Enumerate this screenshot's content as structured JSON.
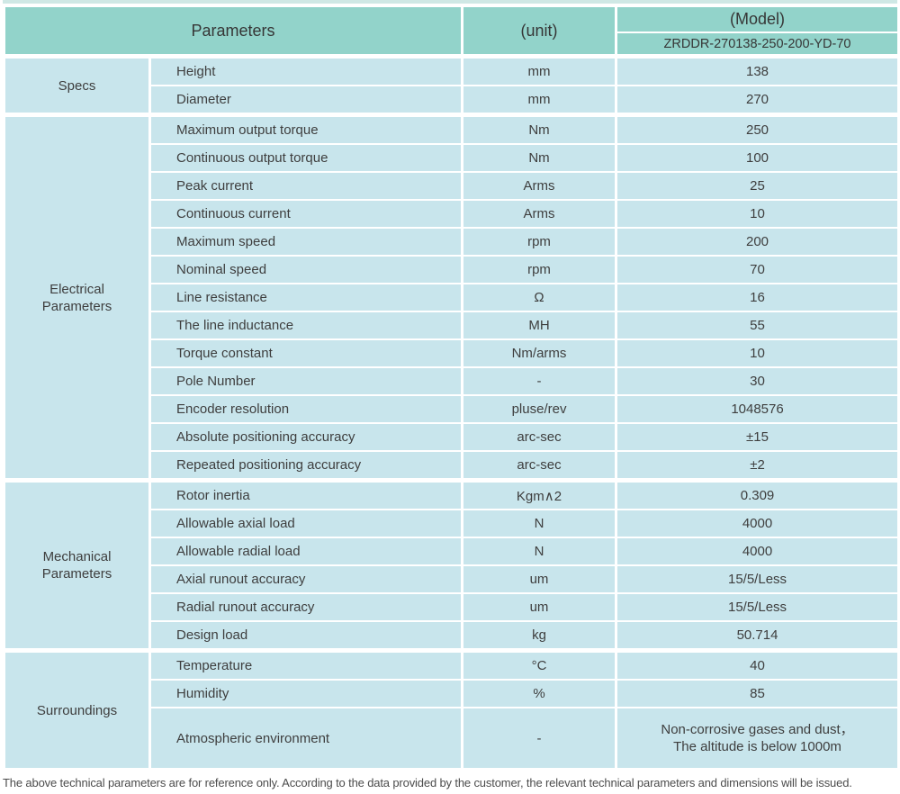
{
  "header": {
    "parameters_label": "Parameters",
    "unit_label": "(unit)",
    "model_label": "(Model)",
    "model_value": "ZRDDR-270138-250-200-YD-70"
  },
  "sections": [
    {
      "group": "Specs",
      "rows": [
        {
          "param": "Height",
          "unit": "mm",
          "value": "138"
        },
        {
          "param": "Diameter",
          "unit": "mm",
          "value": "270"
        }
      ]
    },
    {
      "group": "Electrical Parameters",
      "rows": [
        {
          "param": "Maximum output torque",
          "unit": "Nm",
          "value": "250"
        },
        {
          "param": "Continuous output torque",
          "unit": "Nm",
          "value": "100"
        },
        {
          "param": "Peak current",
          "unit": "Arms",
          "value": "25"
        },
        {
          "param": "Continuous current",
          "unit": "Arms",
          "value": "10"
        },
        {
          "param": "Maximum speed",
          "unit": "rpm",
          "value": "200"
        },
        {
          "param": "Nominal speed",
          "unit": "rpm",
          "value": "70"
        },
        {
          "param": "Line resistance",
          "unit": "Ω",
          "value": "16"
        },
        {
          "param": "The line inductance",
          "unit": "MH",
          "value": "55"
        },
        {
          "param": "Torque constant",
          "unit": "Nm/arms",
          "value": "10"
        },
        {
          "param": "Pole Number",
          "unit": "-",
          "value": "30"
        },
        {
          "param": "Encoder resolution",
          "unit": "pluse/rev",
          "value": "1048576"
        },
        {
          "param": "Absolute positioning accuracy",
          "unit": "arc-sec",
          "value": "±15"
        },
        {
          "param": "Repeated positioning accuracy",
          "unit": "arc-sec",
          "value": "±2"
        }
      ]
    },
    {
      "group": "Mechanical Parameters",
      "rows": [
        {
          "param": "Rotor inertia",
          "unit": "Kgm∧2",
          "value": "0.309"
        },
        {
          "param": "Allowable axial load",
          "unit": "N",
          "value": "4000"
        },
        {
          "param": "Allowable radial load",
          "unit": "N",
          "value": "4000"
        },
        {
          "param": "Axial runout accuracy",
          "unit": "um",
          "value": "15/5/Less"
        },
        {
          "param": "Radial runout accuracy",
          "unit": "um",
          "value": "15/5/Less"
        },
        {
          "param": "Design load",
          "unit": "kg",
          "value": "50.714"
        }
      ]
    },
    {
      "group": "Surroundings",
      "rows": [
        {
          "param": "Temperature",
          "unit": "°C",
          "value": "40"
        },
        {
          "param": "Humidity",
          "unit": "%",
          "value": "85"
        },
        {
          "param": "Atmospheric environment",
          "unit": "-",
          "value": [
            "Non-corrosive gases and dust，",
            "The altitude is below 1000m"
          ]
        }
      ]
    }
  ],
  "footer_note": "The above technical parameters are for reference only. According to the data provided by the customer, the relevant technical parameters and dimensions will be issued.",
  "colors": {
    "header_bg": "#92d3ca",
    "cell_bg": "#c8e5ec",
    "border": "#ffffff",
    "text": "#3e3e3e"
  }
}
